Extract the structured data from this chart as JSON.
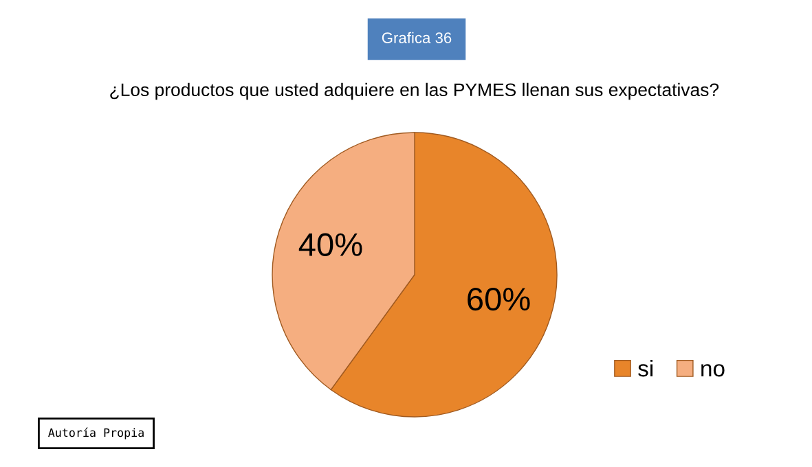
{
  "chart_data": {
    "type": "pie",
    "title": "¿Los productos que usted adquiere en las PYMES llenan sus expectativas?",
    "categories": [
      "si",
      "no"
    ],
    "values": [
      60,
      40
    ],
    "colors": [
      "#e8852a",
      "#f5ae80"
    ],
    "value_labels": [
      "60%",
      "40%"
    ],
    "legend": "bottom right",
    "annotations": [
      "Grafica 36",
      "Autoría Propia"
    ]
  }
}
